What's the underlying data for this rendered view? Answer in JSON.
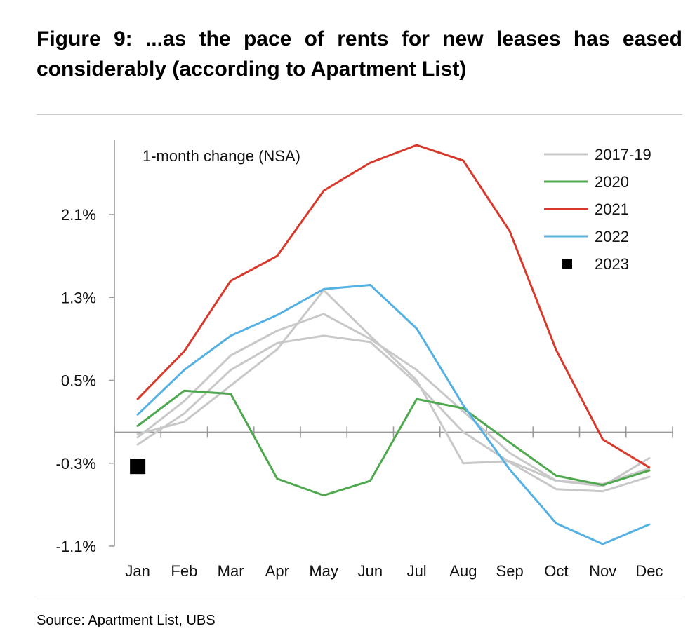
{
  "header": {
    "title": "Figure 9: ...as the pace of rents for new leases has eased considerably (according to Apartment List)"
  },
  "footer": {
    "source": "Source: Apartment List, UBS"
  },
  "chart_data": {
    "type": "line",
    "title": "Figure 9: ...as the pace of rents for new leases has eased considerably (according to Apartment List)",
    "annotation": "1-month change (NSA)",
    "xlabel": "",
    "ylabel": "",
    "categories": [
      "Jan",
      "Feb",
      "Mar",
      "Apr",
      "May",
      "Jun",
      "Jul",
      "Aug",
      "Sep",
      "Oct",
      "Nov",
      "Dec"
    ],
    "ylim": [
      -1.1,
      2.8
    ],
    "yticks": [
      2.1,
      1.3,
      0.5,
      -0.3,
      -1.1
    ],
    "ytick_labels": [
      "2.1%",
      "1.3%",
      "0.5%",
      "-0.3%",
      "-1.1%"
    ],
    "legend_position": "top-right",
    "series": [
      {
        "name": "2017-19",
        "legend": true,
        "color": "#c8c8c8",
        "kind": "line",
        "values": [
          -0.05,
          0.3,
          0.74,
          0.98,
          1.14,
          0.9,
          0.6,
          0.2,
          -0.2,
          -0.47,
          -0.52,
          -0.25
        ]
      },
      {
        "name": "2017-19 (2)",
        "legend": false,
        "color": "#c8c8c8",
        "kind": "line",
        "values": [
          -0.12,
          0.18,
          0.6,
          0.86,
          0.93,
          0.87,
          0.47,
          0.0,
          -0.29,
          -0.55,
          -0.57,
          -0.43
        ]
      },
      {
        "name": "2017-19 (3)",
        "legend": false,
        "color": "#c8c8c8",
        "kind": "line",
        "values": [
          -0.02,
          0.1,
          0.45,
          0.8,
          1.37,
          0.93,
          0.5,
          -0.3,
          -0.28,
          -0.47,
          -0.5,
          -0.35
        ]
      },
      {
        "name": "2020",
        "legend": true,
        "color": "#4ea84e",
        "kind": "line",
        "values": [
          0.06,
          0.4,
          0.37,
          -0.45,
          -0.61,
          -0.47,
          0.32,
          0.23,
          -0.1,
          -0.42,
          -0.51,
          -0.37
        ]
      },
      {
        "name": "2021",
        "legend": true,
        "color": "#d73a2c",
        "kind": "line",
        "values": [
          0.32,
          0.78,
          1.46,
          1.7,
          2.33,
          2.6,
          2.77,
          2.62,
          1.94,
          0.79,
          -0.07,
          -0.34
        ]
      },
      {
        "name": "2022",
        "legend": true,
        "color": "#56b1e3",
        "kind": "line",
        "values": [
          0.17,
          0.6,
          0.93,
          1.13,
          1.38,
          1.42,
          1.0,
          0.26,
          -0.36,
          -0.88,
          -1.08,
          -0.89
        ]
      },
      {
        "name": "2023",
        "legend": true,
        "color": "#000000",
        "kind": "marker",
        "values": [
          -0.33,
          null,
          null,
          null,
          null,
          null,
          null,
          null,
          null,
          null,
          null,
          null
        ]
      }
    ]
  }
}
